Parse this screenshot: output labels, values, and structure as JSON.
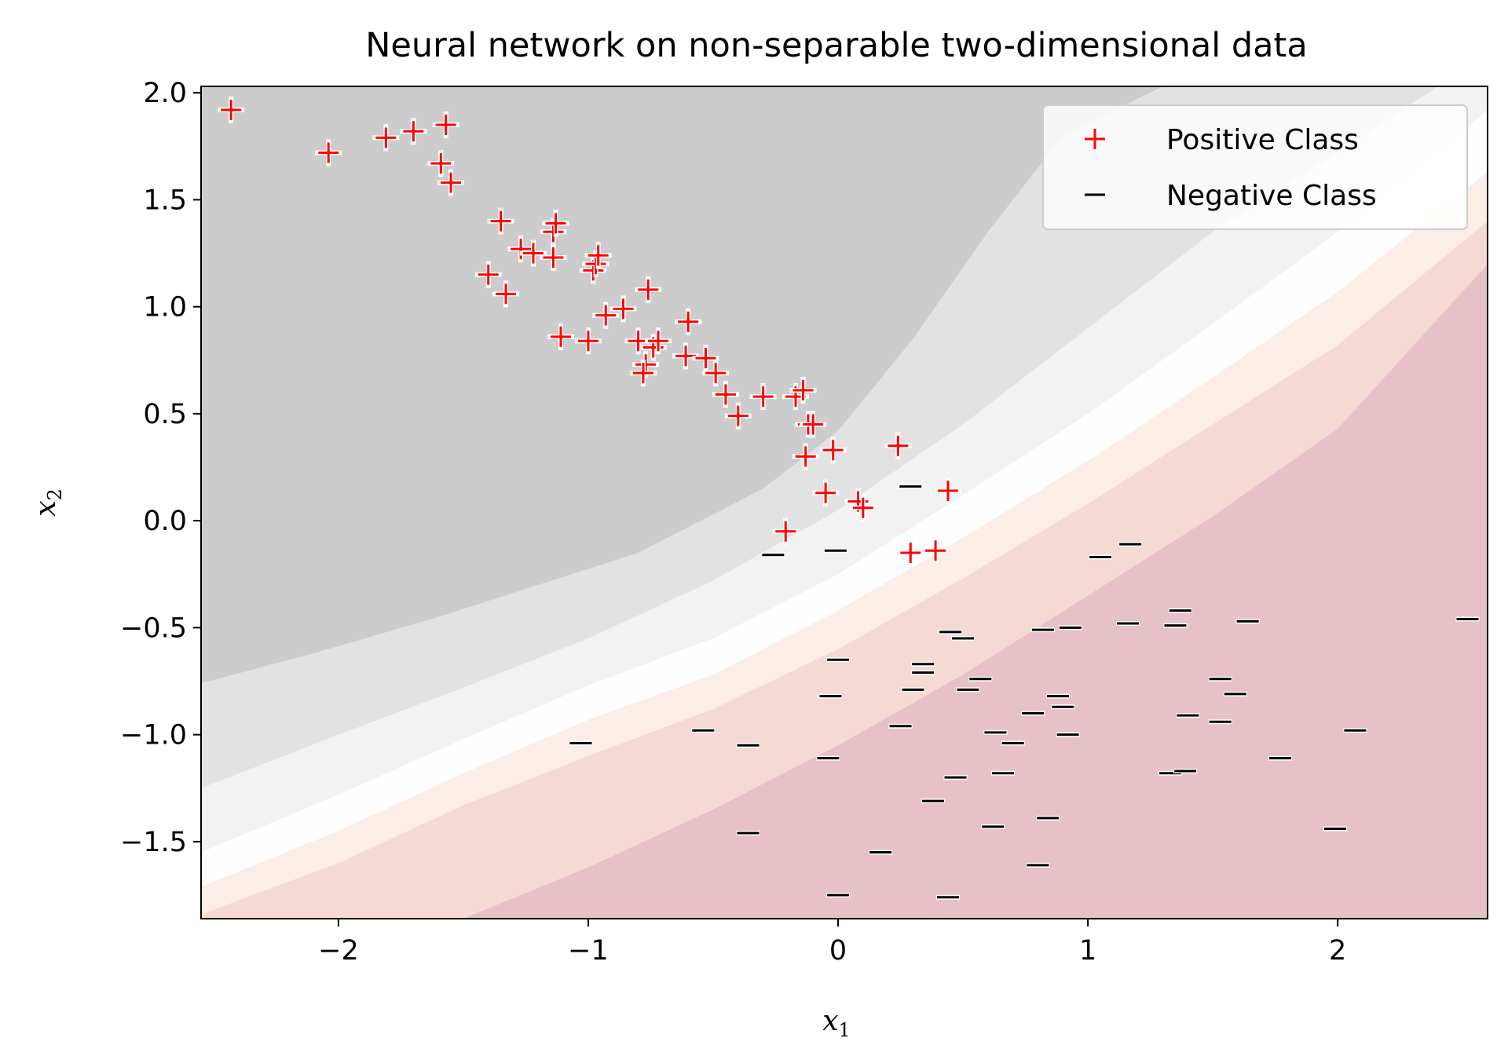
{
  "chart_data": {
    "type": "scatter",
    "title": "Neural network on non-separable two-dimensional data",
    "xlabel": {
      "base": "x",
      "sub": "1"
    },
    "ylabel": {
      "base": "x",
      "sub": "2"
    },
    "xlim": [
      -2.55,
      2.6
    ],
    "ylim": [
      -1.86,
      2.03
    ],
    "xticks": [
      -2,
      -1,
      0,
      1,
      2
    ],
    "xtick_labels": [
      "−2",
      "−1",
      "0",
      "1",
      "2"
    ],
    "yticks": [
      -1.5,
      -1.0,
      -0.5,
      0.0,
      0.5,
      1.0,
      1.5,
      2.0
    ],
    "ytick_labels": [
      "−1.5",
      "−1.0",
      "−0.5",
      "0.0",
      "0.5",
      "1.0",
      "1.5",
      "2.0"
    ],
    "legend_position": "top-right",
    "colors": {
      "positive": "#ff0000",
      "negative": "#000000",
      "background_levels": [
        "#cccccc",
        "#e2e2e2",
        "#f2f2f2",
        "#fefefe",
        "#fcede6",
        "#f5d9d3",
        "#e6c2c8"
      ]
    },
    "decision_regions": [
      {
        "name": "region-level-1",
        "fill": "#e2e2e2",
        "boundary": [
          [
            -2.55,
            -0.76
          ],
          [
            -2.1,
            -0.62
          ],
          [
            -1.6,
            -0.45
          ],
          [
            -1.2,
            -0.3
          ],
          [
            -0.8,
            -0.15
          ],
          [
            -0.3,
            0.15
          ],
          [
            0.0,
            0.42
          ],
          [
            0.3,
            0.85
          ],
          [
            0.6,
            1.35
          ],
          [
            0.9,
            1.8
          ],
          [
            1.3,
            2.03
          ]
        ]
      },
      {
        "name": "region-level-2",
        "fill": "#f2f2f2",
        "boundary": [
          [
            -2.55,
            -1.25
          ],
          [
            -2.0,
            -1.0
          ],
          [
            -1.5,
            -0.78
          ],
          [
            -1.0,
            -0.55
          ],
          [
            -0.5,
            -0.28
          ],
          [
            0.0,
            0.05
          ],
          [
            0.5,
            0.45
          ],
          [
            1.0,
            0.9
          ],
          [
            1.5,
            1.35
          ],
          [
            2.0,
            1.72
          ],
          [
            2.4,
            2.03
          ]
        ]
      },
      {
        "name": "region-level-3",
        "fill": "#fefefe",
        "boundary": [
          [
            -2.55,
            -1.55
          ],
          [
            -2.0,
            -1.28
          ],
          [
            -1.5,
            -1.02
          ],
          [
            -1.0,
            -0.77
          ],
          [
            -0.5,
            -0.55
          ],
          [
            0.0,
            -0.25
          ],
          [
            0.5,
            0.12
          ],
          [
            1.0,
            0.5
          ],
          [
            1.5,
            0.92
          ],
          [
            2.0,
            1.35
          ],
          [
            2.6,
            1.92
          ]
        ]
      },
      {
        "name": "region-level-4",
        "fill": "#fcede6",
        "boundary": [
          [
            -2.55,
            -1.71
          ],
          [
            -2.0,
            -1.45
          ],
          [
            -1.5,
            -1.18
          ],
          [
            -1.0,
            -0.93
          ],
          [
            -0.5,
            -0.72
          ],
          [
            0.0,
            -0.42
          ],
          [
            0.5,
            -0.08
          ],
          [
            1.0,
            0.28
          ],
          [
            1.5,
            0.67
          ],
          [
            2.0,
            1.07
          ],
          [
            2.6,
            1.63
          ]
        ]
      },
      {
        "name": "region-level-5",
        "fill": "#f5d9d3",
        "boundary": [
          [
            -2.55,
            -1.84
          ],
          [
            -2.0,
            -1.6
          ],
          [
            -1.5,
            -1.33
          ],
          [
            -1.0,
            -1.1
          ],
          [
            -0.5,
            -0.88
          ],
          [
            0.0,
            -0.6
          ],
          [
            0.5,
            -0.27
          ],
          [
            1.0,
            0.08
          ],
          [
            1.5,
            0.45
          ],
          [
            2.0,
            0.82
          ],
          [
            2.6,
            1.4
          ]
        ]
      },
      {
        "name": "region-level-6",
        "fill": "#e6c2c8",
        "boundary": [
          [
            -1.5,
            -1.86
          ],
          [
            -1.0,
            -1.62
          ],
          [
            -0.5,
            -1.35
          ],
          [
            0.0,
            -1.05
          ],
          [
            0.5,
            -0.72
          ],
          [
            1.0,
            -0.35
          ],
          [
            1.5,
            0.02
          ],
          [
            2.0,
            0.43
          ],
          [
            2.6,
            1.2
          ]
        ]
      }
    ],
    "series": [
      {
        "name": "Positive Class",
        "marker": "+",
        "points": [
          [
            -2.43,
            1.92
          ],
          [
            -2.04,
            1.72
          ],
          [
            -1.81,
            1.79
          ],
          [
            -1.7,
            1.82
          ],
          [
            -1.57,
            1.85
          ],
          [
            -1.59,
            1.67
          ],
          [
            -1.55,
            1.58
          ],
          [
            -1.35,
            1.4
          ],
          [
            -1.27,
            1.27
          ],
          [
            -1.22,
            1.25
          ],
          [
            -1.14,
            1.23
          ],
          [
            -1.14,
            1.35
          ],
          [
            -1.13,
            1.39
          ],
          [
            -1.4,
            1.15
          ],
          [
            -1.33,
            1.06
          ],
          [
            -1.11,
            0.86
          ],
          [
            -0.98,
            1.17
          ],
          [
            -0.97,
            1.2
          ],
          [
            -0.96,
            1.24
          ],
          [
            -0.93,
            0.96
          ],
          [
            -0.86,
            0.99
          ],
          [
            -1.0,
            0.84
          ],
          [
            -0.76,
            1.08
          ],
          [
            -0.8,
            0.84
          ],
          [
            -0.74,
            0.81
          ],
          [
            -0.72,
            0.84
          ],
          [
            -0.77,
            0.73
          ],
          [
            -0.78,
            0.69
          ],
          [
            -0.6,
            0.93
          ],
          [
            -0.61,
            0.77
          ],
          [
            -0.53,
            0.76
          ],
          [
            -0.49,
            0.69
          ],
          [
            -0.45,
            0.59
          ],
          [
            -0.3,
            0.58
          ],
          [
            -0.17,
            0.58
          ],
          [
            -0.14,
            0.61
          ],
          [
            -0.4,
            0.49
          ],
          [
            -0.12,
            0.45
          ],
          [
            -0.1,
            0.45
          ],
          [
            -0.13,
            0.3
          ],
          [
            -0.02,
            0.33
          ],
          [
            -0.05,
            0.13
          ],
          [
            0.08,
            0.09
          ],
          [
            0.1,
            0.06
          ],
          [
            0.24,
            0.35
          ],
          [
            0.44,
            0.14
          ],
          [
            -0.21,
            -0.05
          ],
          [
            0.29,
            -0.15
          ],
          [
            0.39,
            -0.14
          ]
        ]
      },
      {
        "name": "Negative Class",
        "marker": "_",
        "points": [
          [
            0.29,
            0.16
          ],
          [
            -0.26,
            -0.16
          ],
          [
            -0.01,
            -0.14
          ],
          [
            1.05,
            -0.17
          ],
          [
            1.17,
            -0.11
          ],
          [
            1.37,
            -0.42
          ],
          [
            1.35,
            -0.49
          ],
          [
            1.16,
            -0.48
          ],
          [
            1.64,
            -0.47
          ],
          [
            2.52,
            -0.46
          ],
          [
            0.45,
            -0.52
          ],
          [
            0.5,
            -0.55
          ],
          [
            0.82,
            -0.51
          ],
          [
            0.93,
            -0.5
          ],
          [
            0.0,
            -0.65
          ],
          [
            0.34,
            -0.67
          ],
          [
            0.34,
            -0.71
          ],
          [
            0.57,
            -0.74
          ],
          [
            1.53,
            -0.74
          ],
          [
            1.59,
            -0.81
          ],
          [
            -0.03,
            -0.82
          ],
          [
            0.3,
            -0.79
          ],
          [
            0.52,
            -0.79
          ],
          [
            0.88,
            -0.82
          ],
          [
            0.9,
            -0.87
          ],
          [
            0.78,
            -0.9
          ],
          [
            0.25,
            -0.96
          ],
          [
            -0.54,
            -0.98
          ],
          [
            0.63,
            -0.99
          ],
          [
            1.4,
            -0.91
          ],
          [
            1.53,
            -0.94
          ],
          [
            2.07,
            -0.98
          ],
          [
            -1.03,
            -1.04
          ],
          [
            -0.36,
            -1.05
          ],
          [
            0.7,
            -1.04
          ],
          [
            0.92,
            -1.0
          ],
          [
            -0.04,
            -1.11
          ],
          [
            0.47,
            -1.2
          ],
          [
            0.66,
            -1.18
          ],
          [
            1.33,
            -1.18
          ],
          [
            1.39,
            -1.17
          ],
          [
            1.77,
            -1.11
          ],
          [
            0.38,
            -1.31
          ],
          [
            -0.36,
            -1.46
          ],
          [
            0.84,
            -1.39
          ],
          [
            0.62,
            -1.43
          ],
          [
            1.99,
            -1.44
          ],
          [
            0.17,
            -1.55
          ],
          [
            0.8,
            -1.61
          ],
          [
            0.0,
            -1.75
          ],
          [
            0.44,
            -1.76
          ]
        ]
      }
    ]
  }
}
